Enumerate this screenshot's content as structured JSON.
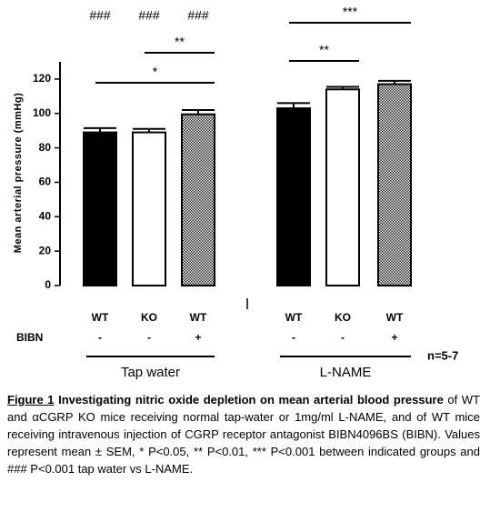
{
  "chart_data": {
    "type": "bar",
    "y_label": "Mean arterial pressure (mmHg)",
    "categories": [
      "WT",
      "KO",
      "WT",
      "WT",
      "KO",
      "WT"
    ],
    "row_label": "BIBN",
    "row_values": [
      "-",
      "-",
      "+",
      "-",
      "-",
      "+"
    ],
    "values": [
      89,
      89,
      99.5,
      103,
      114,
      117
    ],
    "errors": [
      2.5,
      2,
      2.5,
      3,
      1.5,
      2
    ],
    "fills": [
      "solid",
      "open",
      "dotted",
      "solid",
      "open",
      "dotted"
    ],
    "groups": [
      {
        "label": "Tap water",
        "members": [
          0,
          1,
          2
        ]
      },
      {
        "label": "L-NAME",
        "members": [
          3,
          4,
          5
        ]
      }
    ],
    "ylim": [
      0,
      130
    ],
    "yticks": [
      0,
      20,
      40,
      60,
      80,
      100,
      120
    ],
    "hash_labels": [
      "###",
      "###",
      "###"
    ],
    "significance": [
      {
        "label": "*",
        "between": [
          0,
          2
        ]
      },
      {
        "label": "**",
        "between": [
          1,
          2
        ]
      },
      {
        "label": "**",
        "between": [
          3,
          4
        ]
      },
      {
        "label": "***",
        "between": [
          3,
          5
        ]
      }
    ],
    "n_label": "n=5-7"
  },
  "caption": {
    "label": "Figure 1",
    "title": "Investigating nitric oxide depletion on mean arterial blood pressure",
    "text": " of WT and αCGRP KO mice receiving normal tap-water or 1mg/ml L-NAME, and of WT mice receiving intravenous injection of CGRP receptor antagonist BIBN4096BS (BIBN). Values represent mean ± SEM, * P<0.05, ** P<0.01, *** P<0.001 between indicated groups and ### P<0.001 tap water vs L-NAME."
  }
}
